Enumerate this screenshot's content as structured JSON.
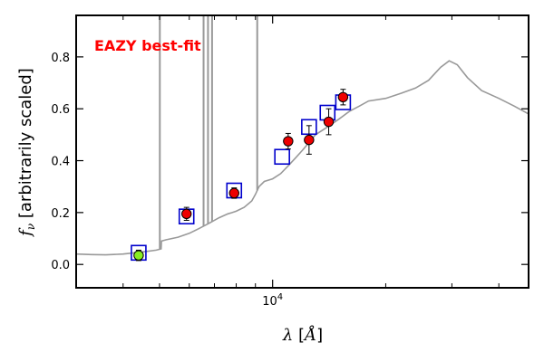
{
  "chart_data": {
    "type": "scatter",
    "title": "",
    "annotation": "EAZY best-fit",
    "annotation_color": "#ff0000",
    "xlabel": "λ [Å]",
    "ylabel": "f_ν [arbitrarily scaled]",
    "x_scale": "log",
    "xlim": [
      3000,
      48000
    ],
    "ylim": [
      -0.09,
      0.96
    ],
    "x_major_ticks": [
      {
        "value": 10000,
        "label": "10^4"
      }
    ],
    "y_ticks": [
      0.0,
      0.2,
      0.4,
      0.6,
      0.8
    ],
    "y_tick_labels": [
      "0.0",
      "0.2",
      "0.4",
      "0.6",
      "0.8"
    ],
    "x_minor_ticks": [
      4000,
      5000,
      6000,
      7000,
      8000,
      9000,
      20000,
      30000,
      40000
    ],
    "grid": false,
    "sed_color": "#999999",
    "sed_template": [
      [
        3000,
        0.04
      ],
      [
        3300,
        0.038
      ],
      [
        3600,
        0.037
      ],
      [
        4000,
        0.04
      ],
      [
        4300,
        0.045
      ],
      [
        4600,
        0.05
      ],
      [
        4900,
        0.055
      ],
      [
        5050,
        0.06
      ],
      [
        5060,
        0.09
      ],
      [
        5200,
        0.095
      ],
      [
        5600,
        0.105
      ],
      [
        6000,
        0.12
      ],
      [
        6400,
        0.14
      ],
      [
        6800,
        0.16
      ],
      [
        7200,
        0.18
      ],
      [
        7600,
        0.195
      ],
      [
        7800,
        0.2
      ],
      [
        8000,
        0.205
      ],
      [
        8400,
        0.22
      ],
      [
        8800,
        0.245
      ],
      [
        9000,
        0.27
      ],
      [
        9200,
        0.3
      ],
      [
        9500,
        0.32
      ],
      [
        10000,
        0.33
      ],
      [
        10500,
        0.35
      ],
      [
        11000,
        0.38
      ],
      [
        11500,
        0.41
      ],
      [
        12000,
        0.44
      ],
      [
        12500,
        0.47
      ],
      [
        13000,
        0.5
      ],
      [
        14000,
        0.53
      ],
      [
        15000,
        0.56
      ],
      [
        16000,
        0.59
      ],
      [
        17000,
        0.61
      ],
      [
        18000,
        0.63
      ],
      [
        20000,
        0.64
      ],
      [
        22000,
        0.66
      ],
      [
        24000,
        0.68
      ],
      [
        26000,
        0.71
      ],
      [
        28000,
        0.76
      ],
      [
        29500,
        0.785
      ],
      [
        31000,
        0.77
      ],
      [
        33000,
        0.72
      ],
      [
        36000,
        0.67
      ],
      [
        40000,
        0.64
      ],
      [
        44000,
        0.61
      ],
      [
        48000,
        0.58
      ]
    ],
    "emission_lines": [
      {
        "x": 5010,
        "top": 0.96
      },
      {
        "x": 6550,
        "top": 0.96
      },
      {
        "x": 6730,
        "top": 0.96
      },
      {
        "x": 6900,
        "top": 0.96
      },
      {
        "x": 9100,
        "top": 0.96
      }
    ],
    "model_points": {
      "name": "EAZY best-fit",
      "color": "#0000cc",
      "marker": "open-square",
      "points": [
        {
          "x": 4400,
          "y": 0.045
        },
        {
          "x": 5900,
          "y": 0.185
        },
        {
          "x": 7900,
          "y": 0.285
        },
        {
          "x": 10600,
          "y": 0.415
        },
        {
          "x": 12500,
          "y": 0.53
        },
        {
          "x": 14000,
          "y": 0.585
        },
        {
          "x": 15400,
          "y": 0.625
        }
      ]
    },
    "observed_points": {
      "color_default": "#ee0000",
      "edge_color": "#000000",
      "points": [
        {
          "x": 4400,
          "y": 0.035,
          "err": 0.02,
          "color": "#88ee22"
        },
        {
          "x": 5900,
          "y": 0.195,
          "err": 0.025
        },
        {
          "x": 7900,
          "y": 0.275,
          "err": 0.02
        },
        {
          "x": 11000,
          "y": 0.475,
          "err": 0.03
        },
        {
          "x": 12500,
          "y": 0.48,
          "err": 0.055
        },
        {
          "x": 14100,
          "y": 0.55,
          "err": 0.05
        },
        {
          "x": 15400,
          "y": 0.645,
          "err": 0.03
        }
      ]
    }
  }
}
